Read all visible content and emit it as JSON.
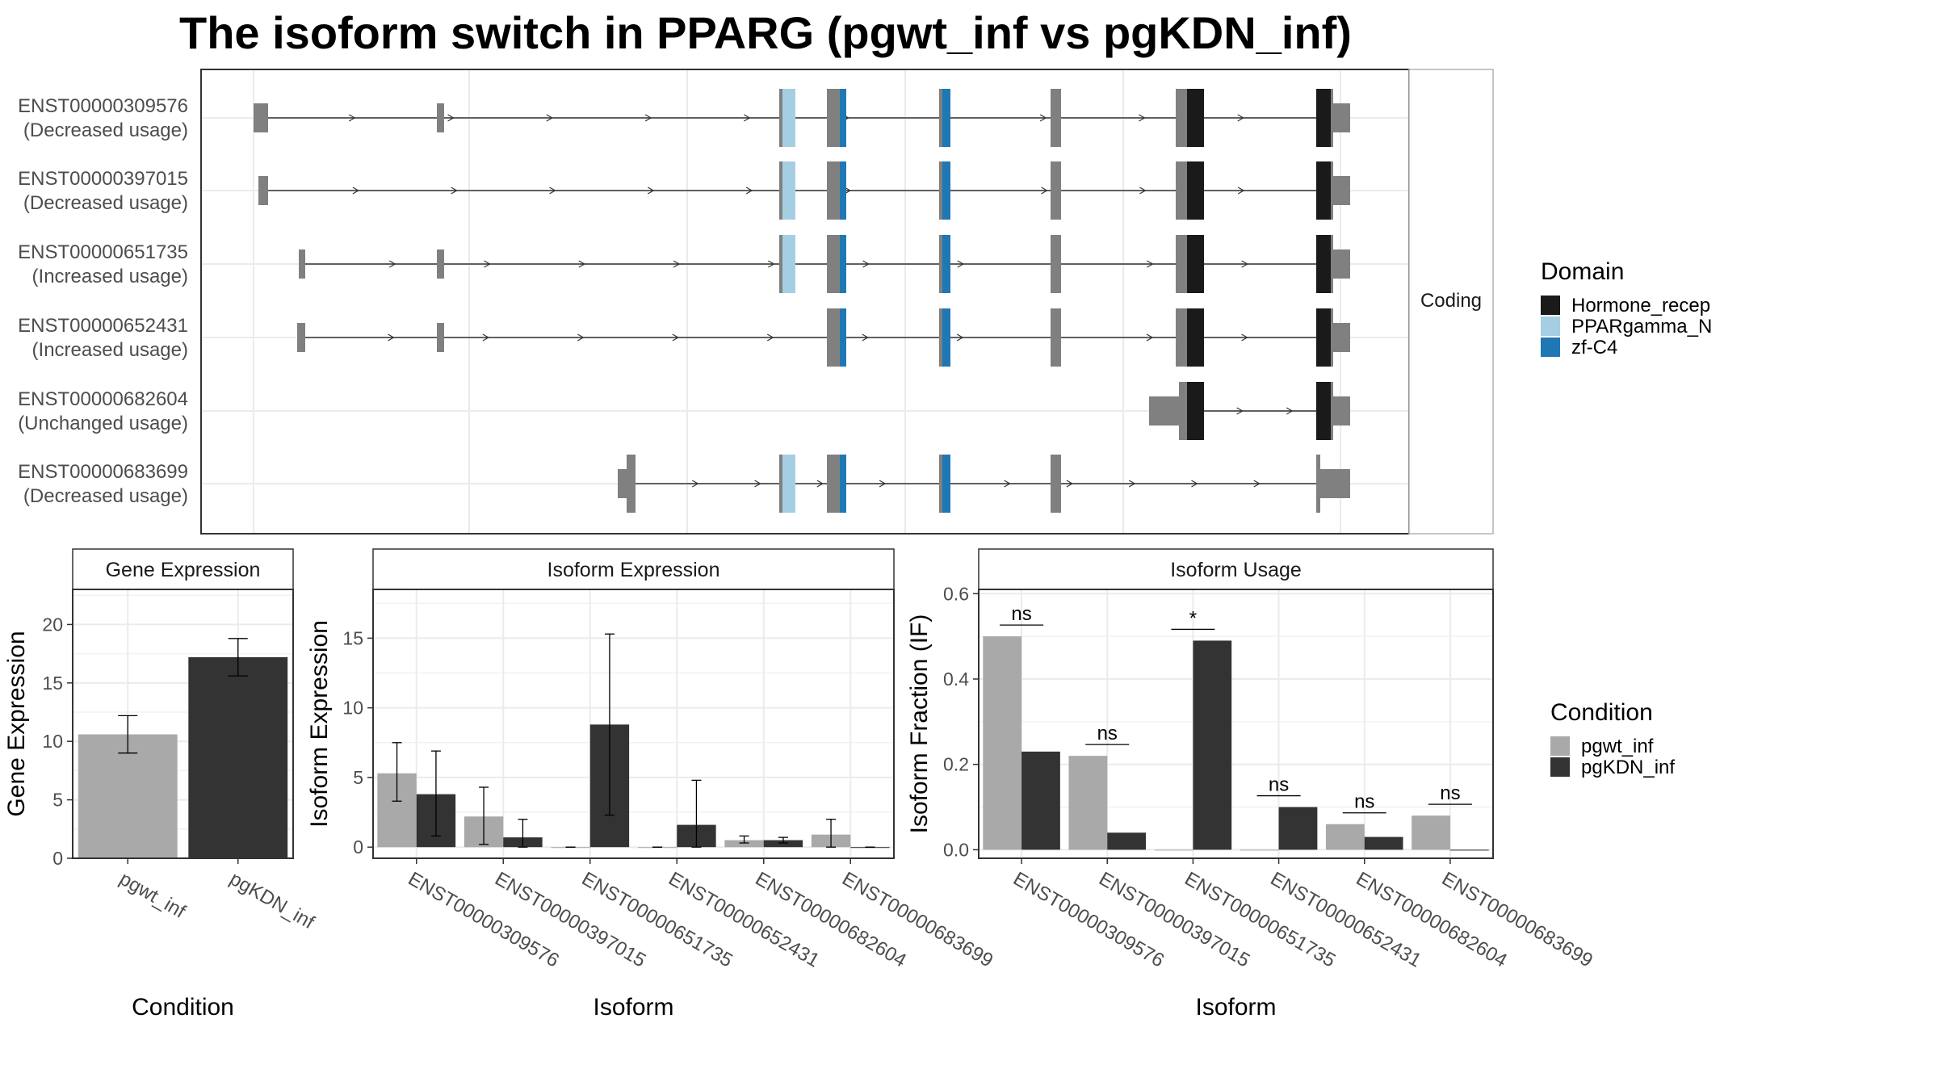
{
  "title": "The isoform switch in PPARG (pgwt_inf vs pgKDN_inf)",
  "colors": {
    "exon": "#808080",
    "hormone_recep": "#1a1a1a",
    "ppargamma_n": "#a6cee3",
    "zf_c4": "#1f78b4",
    "pgwt_inf": "#a9a9a9",
    "pgKDN_inf": "#333333"
  },
  "structure": {
    "facet_label": "Coding",
    "transcripts": [
      {
        "id": "ENST00000309576",
        "usage": "(Decreased usage)"
      },
      {
        "id": "ENST00000397015",
        "usage": "(Decreased usage)"
      },
      {
        "id": "ENST00000651735",
        "usage": "(Increased usage)"
      },
      {
        "id": "ENST00000652431",
        "usage": "(Increased usage)"
      },
      {
        "id": "ENST00000682604",
        "usage": "(Unchanged usage)"
      },
      {
        "id": "ENST00000683699",
        "usage": "(Decreased usage)"
      }
    ],
    "domain_legend": {
      "title": "Domain",
      "items": [
        {
          "name": "Hormone_recep",
          "color": "#1a1a1a"
        },
        {
          "name": "PPARgamma_N",
          "color": "#a6cee3"
        },
        {
          "name": "zf-C4",
          "color": "#1f78b4"
        }
      ]
    }
  },
  "condition_legend": {
    "title": "Condition",
    "items": [
      {
        "name": "pgwt_inf",
        "color": "#a9a9a9"
      },
      {
        "name": "pgKDN_inf",
        "color": "#333333"
      }
    ]
  },
  "chart_data": [
    {
      "type": "bar",
      "title": "Gene Expression",
      "xlabel": "Condition",
      "ylabel": "Gene Expression",
      "categories": [
        "pgwt_inf",
        "pgKDN_inf"
      ],
      "values": [
        10.6,
        17.2
      ],
      "error_low": [
        9.0,
        15.6
      ],
      "error_high": [
        12.2,
        18.8
      ],
      "ylim": [
        0,
        23
      ],
      "yticks": [
        0,
        5,
        10,
        15,
        20
      ]
    },
    {
      "type": "bar",
      "title": "Isoform Expression",
      "xlabel": "Isoform",
      "ylabel": "Isoform Expression",
      "categories": [
        "ENST00000309576",
        "ENST00000397015",
        "ENST00000651735",
        "ENST00000652431",
        "ENST00000682604",
        "ENST00000683699"
      ],
      "series": [
        {
          "name": "pgwt_inf",
          "values": [
            5.3,
            2.2,
            0.0,
            0.0,
            0.5,
            0.9
          ],
          "error_low": [
            3.3,
            0.2,
            0.0,
            0.0,
            0.3,
            0.0
          ],
          "error_high": [
            7.5,
            4.3,
            0.0,
            0.0,
            0.8,
            2.0
          ]
        },
        {
          "name": "pgKDN_inf",
          "values": [
            3.8,
            0.7,
            8.8,
            1.6,
            0.5,
            0.0
          ],
          "error_low": [
            0.8,
            0.0,
            2.3,
            0.0,
            0.3,
            0.0
          ],
          "error_high": [
            6.9,
            2.0,
            15.3,
            4.8,
            0.7,
            0.0
          ]
        }
      ],
      "ylim": [
        -0.8,
        18.5
      ],
      "yticks": [
        0,
        5,
        10,
        15
      ]
    },
    {
      "type": "bar",
      "title": "Isoform Usage",
      "xlabel": "Isoform",
      "ylabel": "Isoform Fraction (IF)",
      "categories": [
        "ENST00000309576",
        "ENST00000397015",
        "ENST00000651735",
        "ENST00000652431",
        "ENST00000682604",
        "ENST00000683699"
      ],
      "series": [
        {
          "name": "pgwt_inf",
          "values": [
            0.5,
            0.22,
            0.0,
            0.0,
            0.06,
            0.08
          ]
        },
        {
          "name": "pgKDN_inf",
          "values": [
            0.23,
            0.04,
            0.49,
            0.1,
            0.03,
            0.0
          ]
        }
      ],
      "significance": [
        "ns",
        "ns",
        "*",
        "ns",
        "ns",
        "ns"
      ],
      "ylim": [
        -0.02,
        0.61
      ],
      "yticks": [
        0.0,
        0.2,
        0.4,
        0.6
      ],
      "ytick_labels": [
        "0.0",
        "0.2",
        "0.4",
        "0.6"
      ]
    }
  ]
}
